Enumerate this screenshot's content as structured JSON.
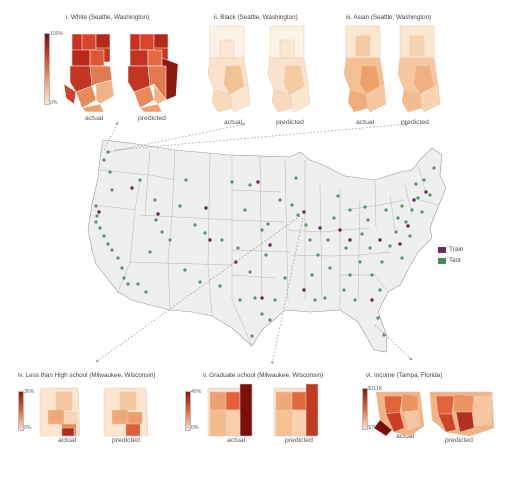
{
  "panels_top": [
    {
      "title": "i. White (Seattle, Washington)",
      "actual": "actual",
      "predicted": "predicted",
      "colorbar_max": "100%",
      "colorbar_min": "0%",
      "palette": "red"
    },
    {
      "title": "ii. Black (Seattle, Washington)",
      "actual": "actual",
      "predicted": "predicted",
      "palette": "pale"
    },
    {
      "title": "iii. Asian (Seattle, Washington)",
      "actual": "actual",
      "predicted": "predicted",
      "palette": "peach"
    }
  ],
  "panels_bottom": [
    {
      "title": "iv. Less than High school  (Milwaukee, Wisconsin)",
      "actual": "actual",
      "predicted": "predicted",
      "colorbar_max": "36%",
      "colorbar_min": "0%"
    },
    {
      "title": "v. Graduate school  (Milwaukee, Wisconsin)",
      "actual": "actual",
      "predicted": "predicted",
      "colorbar_max": "45%",
      "colorbar_min": "0%"
    },
    {
      "title": "vi. Income (Tampa, Florida)",
      "actual": "actual",
      "predicted": "predicted",
      "colorbar_max": "$111K",
      "colorbar_min": "$7K"
    }
  ],
  "legend": [
    {
      "label": "Train",
      "color": "#6b2a5e"
    },
    {
      "label": "Test",
      "color": "#4f8a5f"
    }
  ],
  "colors": {
    "train": "#6b2a5e",
    "test": "#5a9168",
    "map_fill": "#efefef",
    "map_stroke": "#9a9a9a"
  }
}
